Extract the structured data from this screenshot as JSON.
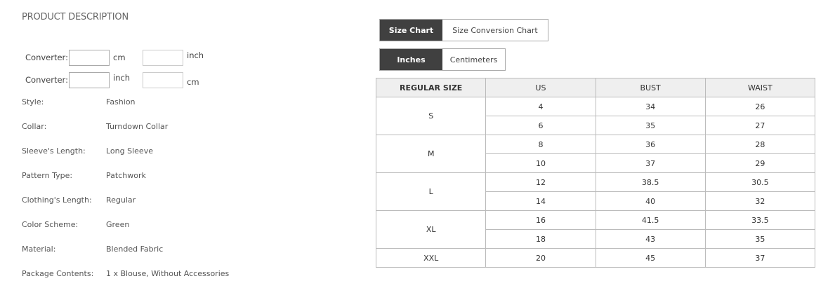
{
  "title": "PRODUCT DESCRIPTION",
  "converters": [
    {
      "label": "Converter:",
      "unit1": "cm",
      "unit2": "inch",
      "value1": "",
      "value2": ""
    },
    {
      "label": "Converter:",
      "unit1": "inch",
      "unit2": "cm",
      "value1": "",
      "value2": ""
    }
  ],
  "specs": [
    {
      "label": "Style:",
      "value": "Fashion"
    },
    {
      "label": "Collar:",
      "value": "Turndown Collar"
    },
    {
      "label": "Sleeve's Length:",
      "value": "Long Sleeve"
    },
    {
      "label": "Pattern Type:",
      "value": "Patchwork"
    },
    {
      "label": "Clothing's Length:",
      "value": "Regular"
    },
    {
      "label": "Color Scheme:",
      "value": "Green"
    },
    {
      "label": "Material:",
      "value": "Blended Fabric"
    },
    {
      "label": "Package Contents:",
      "value": "1 x Blouse, Without Accessories"
    }
  ],
  "chart_tabs": [
    {
      "label": "Size Chart",
      "active": true
    },
    {
      "label": "Size Conversion Chart",
      "active": false
    }
  ],
  "unit_tabs": [
    {
      "label": "Inches",
      "active": true
    },
    {
      "label": "Centimeters",
      "active": false
    }
  ],
  "table": {
    "headers": [
      "REGULAR SIZE",
      "US",
      "BUST",
      "WAIST"
    ],
    "groups": [
      {
        "size": "S",
        "rows": [
          [
            "4",
            "34",
            "26"
          ],
          [
            "6",
            "35",
            "27"
          ]
        ]
      },
      {
        "size": "M",
        "rows": [
          [
            "8",
            "36",
            "28"
          ],
          [
            "10",
            "37",
            "29"
          ]
        ]
      },
      {
        "size": "L",
        "rows": [
          [
            "12",
            "38.5",
            "30.5"
          ],
          [
            "14",
            "40",
            "32"
          ]
        ]
      },
      {
        "size": "XL",
        "rows": [
          [
            "16",
            "41.5",
            "33.5"
          ],
          [
            "18",
            "43",
            "35"
          ]
        ]
      },
      {
        "size": "XXL",
        "rows": [
          [
            "20",
            "45",
            "37"
          ]
        ]
      }
    ]
  },
  "colors": {
    "active_tab": "#404040",
    "header_bg": "#efefef"
  }
}
